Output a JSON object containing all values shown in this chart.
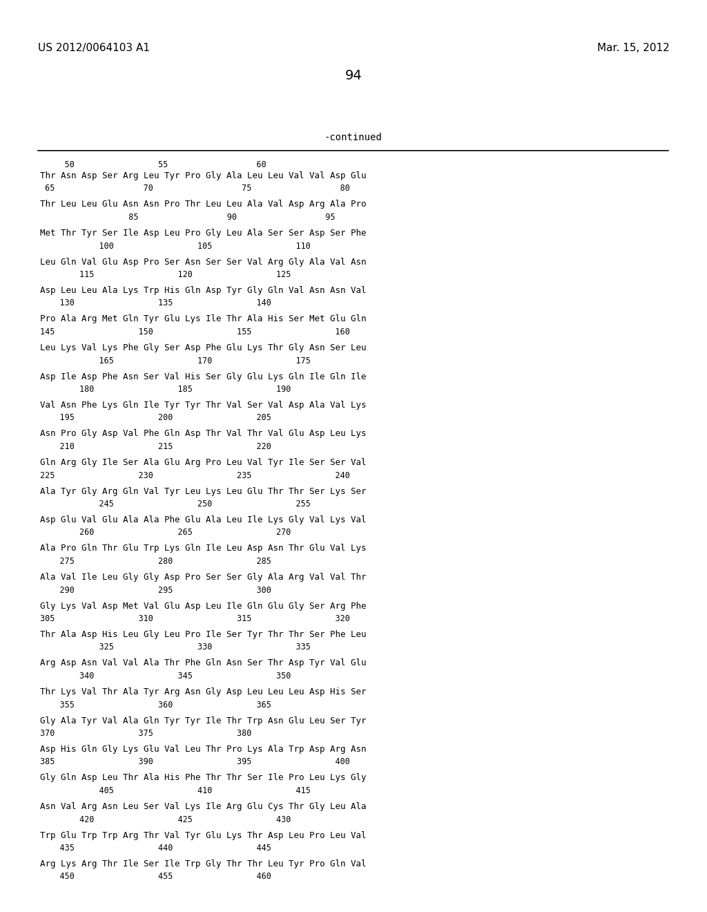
{
  "header_left": "US 2012/0064103 A1",
  "header_right": "Mar. 15, 2012",
  "page_number": "94",
  "continued_text": "-continued",
  "bg_color": "#ffffff",
  "text_color": "#000000",
  "sequence_blocks": [
    [
      "nums",
      "     50                 55                  60"
    ],
    [
      "seq",
      "Thr Asn Asp Ser Arg Leu Tyr Pro Gly Ala Leu Leu Val Val Asp Glu"
    ],
    [
      "nums",
      " 65                  70                  75                  80"
    ],
    [
      "blank",
      ""
    ],
    [
      "seq",
      "Thr Leu Leu Glu Asn Asn Pro Thr Leu Leu Ala Val Asp Arg Ala Pro"
    ],
    [
      "nums",
      "                  85                  90                  95"
    ],
    [
      "blank",
      ""
    ],
    [
      "seq",
      "Met Thr Tyr Ser Ile Asp Leu Pro Gly Leu Ala Ser Ser Asp Ser Phe"
    ],
    [
      "nums",
      "            100                 105                 110"
    ],
    [
      "blank",
      ""
    ],
    [
      "seq",
      "Leu Gln Val Glu Asp Pro Ser Asn Ser Ser Val Arg Gly Ala Val Asn"
    ],
    [
      "nums",
      "        115                 120                 125"
    ],
    [
      "blank",
      ""
    ],
    [
      "seq",
      "Asp Leu Leu Ala Lys Trp His Gln Asp Tyr Gly Gln Val Asn Asn Val"
    ],
    [
      "nums",
      "    130                 135                 140"
    ],
    [
      "blank",
      ""
    ],
    [
      "seq",
      "Pro Ala Arg Met Gln Tyr Glu Lys Ile Thr Ala His Ser Met Glu Gln"
    ],
    [
      "nums",
      "145                 150                 155                 160"
    ],
    [
      "blank",
      ""
    ],
    [
      "seq",
      "Leu Lys Val Lys Phe Gly Ser Asp Phe Glu Lys Thr Gly Asn Ser Leu"
    ],
    [
      "nums",
      "            165                 170                 175"
    ],
    [
      "blank",
      ""
    ],
    [
      "seq",
      "Asp Ile Asp Phe Asn Ser Val His Ser Gly Glu Lys Gln Ile Gln Ile"
    ],
    [
      "nums",
      "        180                 185                 190"
    ],
    [
      "blank",
      ""
    ],
    [
      "seq",
      "Val Asn Phe Lys Gln Ile Tyr Tyr Thr Val Ser Val Asp Ala Val Lys"
    ],
    [
      "nums",
      "    195                 200                 205"
    ],
    [
      "blank",
      ""
    ],
    [
      "seq",
      "Asn Pro Gly Asp Val Phe Gln Asp Thr Val Thr Val Glu Asp Leu Lys"
    ],
    [
      "nums",
      "    210                 215                 220"
    ],
    [
      "blank",
      ""
    ],
    [
      "seq",
      "Gln Arg Gly Ile Ser Ala Glu Arg Pro Leu Val Tyr Ile Ser Ser Val"
    ],
    [
      "nums",
      "225                 230                 235                 240"
    ],
    [
      "blank",
      ""
    ],
    [
      "seq",
      "Ala Tyr Gly Arg Gln Val Tyr Leu Lys Leu Glu Thr Thr Ser Lys Ser"
    ],
    [
      "nums",
      "            245                 250                 255"
    ],
    [
      "blank",
      ""
    ],
    [
      "seq",
      "Asp Glu Val Glu Ala Ala Phe Glu Ala Leu Ile Lys Gly Val Lys Val"
    ],
    [
      "nums",
      "        260                 265                 270"
    ],
    [
      "blank",
      ""
    ],
    [
      "seq",
      "Ala Pro Gln Thr Glu Trp Lys Gln Ile Leu Asp Asn Thr Glu Val Lys"
    ],
    [
      "nums",
      "    275                 280                 285"
    ],
    [
      "blank",
      ""
    ],
    [
      "seq",
      "Ala Val Ile Leu Gly Gly Asp Pro Ser Ser Gly Ala Arg Val Val Thr"
    ],
    [
      "nums",
      "    290                 295                 300"
    ],
    [
      "blank",
      ""
    ],
    [
      "seq",
      "Gly Lys Val Asp Met Val Glu Asp Leu Ile Gln Glu Gly Ser Arg Phe"
    ],
    [
      "nums",
      "305                 310                 315                 320"
    ],
    [
      "blank",
      ""
    ],
    [
      "seq",
      "Thr Ala Asp His Leu Gly Leu Pro Ile Ser Tyr Thr Thr Ser Phe Leu"
    ],
    [
      "nums",
      "            325                 330                 335"
    ],
    [
      "blank",
      ""
    ],
    [
      "seq",
      "Arg Asp Asn Val Val Ala Thr Phe Gln Asn Ser Thr Asp Tyr Val Glu"
    ],
    [
      "nums",
      "        340                 345                 350"
    ],
    [
      "blank",
      ""
    ],
    [
      "seq",
      "Thr Lys Val Thr Ala Tyr Arg Asn Gly Asp Leu Leu Leu Asp His Ser"
    ],
    [
      "nums",
      "    355                 360                 365"
    ],
    [
      "blank",
      ""
    ],
    [
      "seq",
      "Gly Ala Tyr Val Ala Gln Tyr Tyr Ile Thr Trp Asn Glu Leu Ser Tyr"
    ],
    [
      "nums",
      "370                 375                 380"
    ],
    [
      "blank",
      ""
    ],
    [
      "seq",
      "Asp His Gln Gly Lys Glu Val Leu Thr Pro Lys Ala Trp Asp Arg Asn"
    ],
    [
      "nums",
      "385                 390                 395                 400"
    ],
    [
      "blank",
      ""
    ],
    [
      "seq",
      "Gly Gln Asp Leu Thr Ala His Phe Thr Thr Ser Ile Pro Leu Lys Gly"
    ],
    [
      "nums",
      "            405                 410                 415"
    ],
    [
      "blank",
      ""
    ],
    [
      "seq",
      "Asn Val Arg Asn Leu Ser Val Lys Ile Arg Glu Cys Thr Gly Leu Ala"
    ],
    [
      "nums",
      "        420                 425                 430"
    ],
    [
      "blank",
      ""
    ],
    [
      "seq",
      "Trp Glu Trp Trp Arg Thr Val Tyr Glu Lys Thr Asp Leu Pro Leu Val"
    ],
    [
      "nums",
      "    435                 440                 445"
    ],
    [
      "blank",
      ""
    ],
    [
      "seq",
      "Arg Lys Arg Thr Ile Ser Ile Trp Gly Thr Thr Leu Tyr Pro Gln Val"
    ],
    [
      "nums",
      "    450                 455                 460"
    ]
  ]
}
